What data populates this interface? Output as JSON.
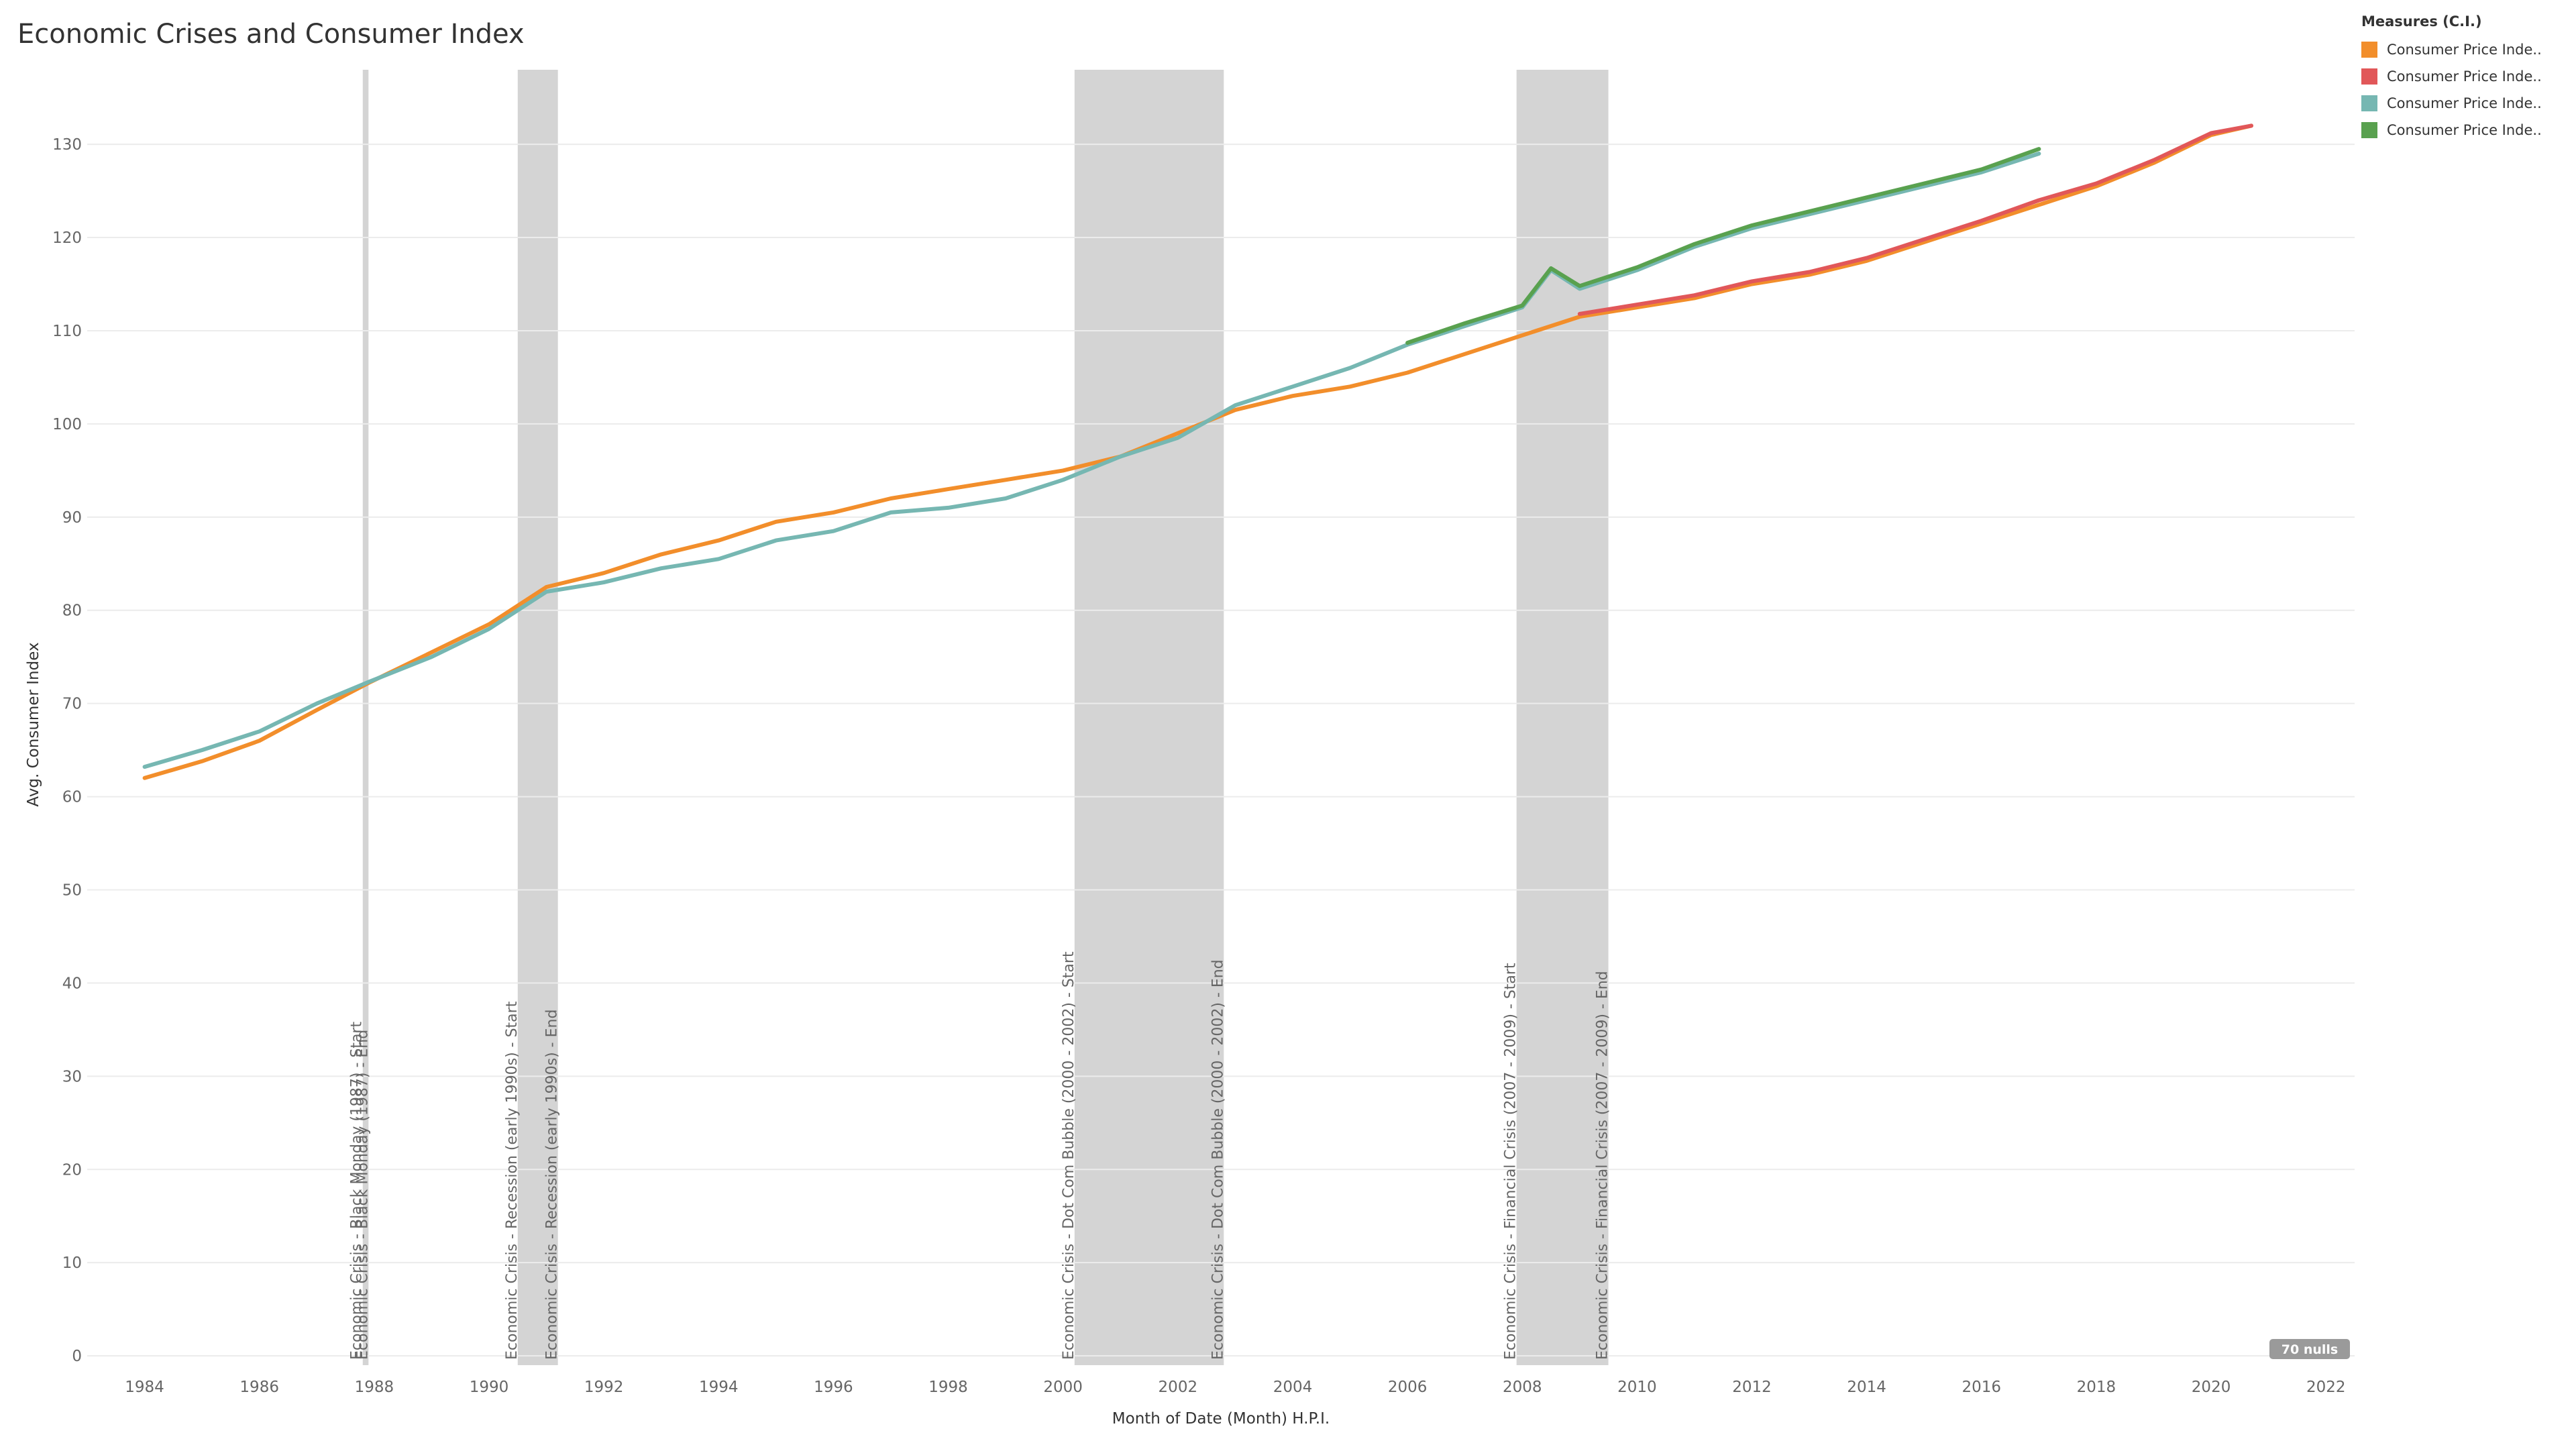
{
  "title": "Economic Crises and Consumer Index",
  "legend": {
    "title": "Measures (C.I.)",
    "items": [
      {
        "label": "Consumer Price Inde..",
        "color": "#f28e2b"
      },
      {
        "label": "Consumer Price Inde..",
        "color": "#e15759"
      },
      {
        "label": "Consumer Price Inde..",
        "color": "#76b7b2"
      },
      {
        "label": "Consumer Price Inde..",
        "color": "#59a14f"
      }
    ]
  },
  "nulls_badge": "70 nulls",
  "chart_data": {
    "type": "line",
    "title": "Economic Crises and Consumer Index",
    "xlabel": "Month of Date (Month) H.P.I.",
    "ylabel": "Avg. Consumer Index",
    "xlim": [
      1983.0,
      2022.5
    ],
    "ylim": [
      -1,
      138
    ],
    "x_ticks": [
      1984,
      1986,
      1988,
      1990,
      1992,
      1994,
      1996,
      1998,
      2000,
      2002,
      2004,
      2006,
      2008,
      2010,
      2012,
      2014,
      2016,
      2018,
      2020,
      2022
    ],
    "y_ticks": [
      0,
      10,
      20,
      30,
      40,
      50,
      60,
      70,
      80,
      90,
      100,
      110,
      120,
      130
    ],
    "grid": "horizontal",
    "legend_position": "top-right",
    "crisis_bands": [
      {
        "start": 1987.8,
        "end": 1987.9,
        "start_label": "Economic Crisis - Black Monday (1987) - Start",
        "end_label": "Economic Crisis - Black Monday (1987) - End"
      },
      {
        "start": 1990.5,
        "end": 1991.2,
        "start_label": "Economic Crisis - Recession (early 1990s) - Start",
        "end_label": "Economic Crisis - Recession (early 1990s) - End"
      },
      {
        "start": 2000.2,
        "end": 2002.8,
        "start_label": "Economic Crisis - Dot Com Bubble (2000 - 2002) - Start",
        "end_label": "Economic Crisis - Dot Com Bubble (2000 - 2002) - End"
      },
      {
        "start": 2007.9,
        "end": 2009.5,
        "start_label": "Economic Crisis - Financial Crisis (2007 - 2009) - Start",
        "end_label": "Economic Crisis - Financial Crisis (2007 - 2009) - End"
      }
    ],
    "series": [
      {
        "name": "Consumer Price Inde..",
        "color": "#f28e2b",
        "x": [
          1984.0,
          1985.0,
          1986.0,
          1987.0,
          1987.9,
          1989.0,
          1990.0,
          1991.0,
          1992.0,
          1993.0,
          1994.0,
          1995.0,
          1996.0,
          1997.0,
          1998.0,
          1999.0,
          2000.0,
          2001.0,
          2002.0,
          2003.0,
          2004.0,
          2005.0,
          2006.0,
          2007.0,
          2008.0,
          2009.0,
          2010.0,
          2011.0,
          2012.0,
          2013.0,
          2014.0,
          2015.0,
          2016.0,
          2017.0,
          2018.0,
          2019.0,
          2020.0,
          2020.7
        ],
        "y": [
          62.0,
          63.8,
          66.0,
          69.3,
          72.2,
          75.5,
          78.5,
          82.5,
          84.0,
          86.0,
          87.5,
          89.5,
          90.5,
          92.0,
          93.0,
          94.0,
          95.0,
          96.5,
          99.0,
          101.5,
          103.0,
          104.0,
          105.5,
          107.5,
          109.5,
          111.5,
          112.5,
          113.5,
          115.0,
          116.0,
          117.5,
          119.5,
          121.5,
          123.5,
          125.5,
          128.0,
          131.0,
          132.0
        ]
      },
      {
        "name": "Consumer Price Inde..",
        "color": "#e15759",
        "x": [
          2009.0,
          2010.0,
          2011.0,
          2012.0,
          2013.0,
          2014.0,
          2015.0,
          2016.0,
          2017.0,
          2018.0,
          2019.0,
          2020.0,
          2020.7
        ],
        "y": [
          111.8,
          112.8,
          113.8,
          115.3,
          116.3,
          117.8,
          119.8,
          121.8,
          124.0,
          125.8,
          128.3,
          131.2,
          132.0
        ]
      },
      {
        "name": "Consumer Price Inde..",
        "color": "#76b7b2",
        "x": [
          1984.0,
          1985.0,
          1986.0,
          1987.0,
          1987.9,
          1989.0,
          1990.0,
          1991.0,
          1992.0,
          1993.0,
          1994.0,
          1995.0,
          1996.0,
          1997.0,
          1998.0,
          1999.0,
          2000.0,
          2001.0,
          2002.0,
          2003.0,
          2004.0,
          2005.0,
          2006.0,
          2007.0,
          2008.0,
          2008.5,
          2009.0,
          2010.0,
          2011.0,
          2012.0,
          2013.0,
          2014.0,
          2015.0,
          2016.0,
          2017.0
        ],
        "y": [
          63.2,
          65.0,
          67.0,
          70.0,
          72.3,
          75.0,
          78.0,
          82.0,
          83.0,
          84.5,
          85.5,
          87.5,
          88.5,
          90.5,
          91.0,
          92.0,
          94.0,
          96.5,
          98.5,
          102.0,
          104.0,
          106.0,
          108.5,
          110.5,
          112.5,
          116.5,
          114.5,
          116.5,
          119.0,
          121.0,
          122.5,
          124.0,
          125.5,
          127.0,
          129.0
        ]
      },
      {
        "name": "Consumer Price Inde..",
        "color": "#59a14f",
        "x": [
          2006.0,
          2007.0,
          2008.0,
          2008.5,
          2009.0,
          2010.0,
          2011.0,
          2012.0,
          2013.0,
          2014.0,
          2015.0,
          2016.0,
          2017.0
        ],
        "y": [
          108.7,
          110.8,
          112.7,
          116.7,
          114.8,
          116.8,
          119.3,
          121.3,
          122.8,
          124.3,
          125.8,
          127.3,
          129.5
        ]
      }
    ]
  }
}
